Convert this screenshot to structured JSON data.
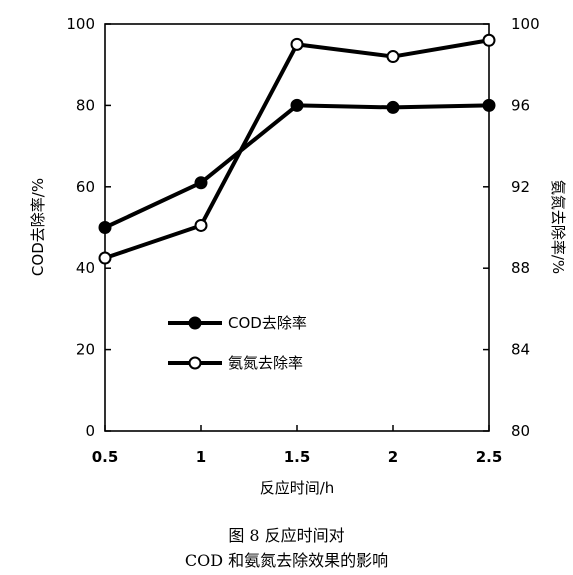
{
  "chart_data": {
    "type": "line",
    "x": [
      0.5,
      1,
      1.5,
      2,
      2.5
    ],
    "x_tick_labels": [
      "0.5",
      "1",
      "1.5",
      "2",
      "2.5"
    ],
    "xlabel": "反应时间/h",
    "xlim": [
      0.5,
      2.5
    ],
    "y_left": {
      "label": "COD去除率/%",
      "lim": [
        0,
        100
      ],
      "ticks": [
        0,
        20,
        40,
        60,
        80,
        100
      ],
      "tick_labels": [
        "0",
        "20",
        "40",
        "60",
        "80",
        "100"
      ]
    },
    "y_right": {
      "label": "氨氮去除率/%",
      "lim": [
        80,
        100
      ],
      "ticks": [
        80,
        84,
        88,
        92,
        96,
        100
      ],
      "tick_labels": [
        "80",
        "84",
        "88",
        "92",
        "96",
        "100"
      ]
    },
    "series": [
      {
        "name": "COD去除率",
        "axis": "left",
        "marker": "filled-circle",
        "values": [
          50,
          61,
          80,
          79.5,
          80
        ]
      },
      {
        "name": "氨氮去除率",
        "axis": "right",
        "marker": "open-circle",
        "values": [
          88.5,
          90.1,
          99,
          98.4,
          99.2
        ]
      }
    ],
    "legend_position": "center-left inside plot",
    "grid": false
  },
  "caption": {
    "line1": "图 8    反应时间对",
    "line2": "COD 和氨氮去除效果的影响"
  },
  "colors": {
    "line": "#000000",
    "background": "#ffffff"
  }
}
